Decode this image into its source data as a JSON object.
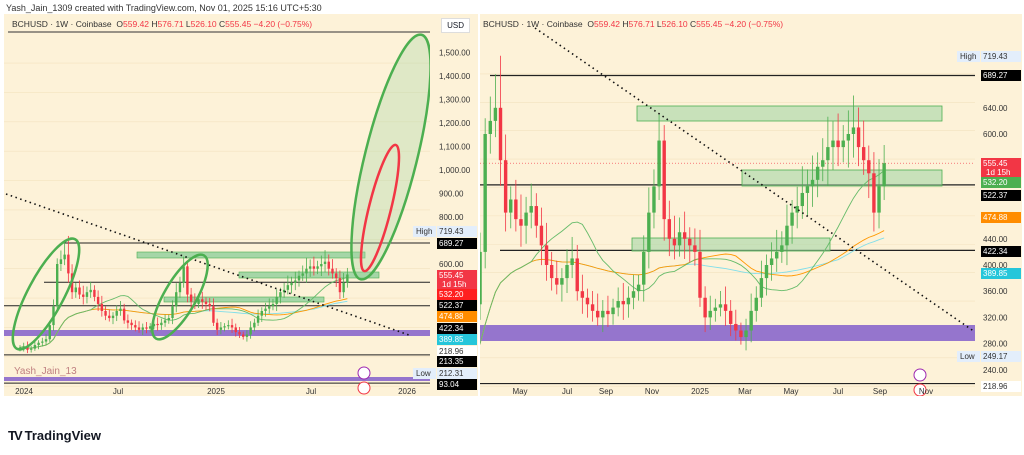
{
  "credit": "Yash_Jain_1309 created with TradingView.com, Nov 01, 2025 15:16 UTC+5:30",
  "brand": "TradingView",
  "watermark": "Yash_Jain_13",
  "header": {
    "symbol": "BCHUSD · 1W · Coinbase",
    "o_label": "O",
    "o": "559.42",
    "h_label": "H",
    "h": "576.71",
    "l_label": "L",
    "l": "526.10",
    "c_label": "C",
    "c": "555.45",
    "chg": "−4.20 (−0.75%)"
  },
  "currency": "USD",
  "colors": {
    "up": "#4caf50",
    "down": "#f23645",
    "bg": "#fdf2d8",
    "zone": "#a5d6a7",
    "band": "#9575cd",
    "ma_fast": "#66bb6a",
    "ma_slow": "#ff9800",
    "ma_long": "#80deea"
  },
  "chart_data": [
    {
      "type": "candlestick",
      "panel": "left",
      "interval": "1W",
      "symbol": "BCHUSD",
      "x_ticks": [
        "2024",
        "Jul",
        "2025",
        "Jul",
        "2026"
      ],
      "y_ticks": [
        "1,500.00",
        "1,400.00",
        "1,300.00",
        "1,200.00",
        "1,100.00",
        "1,000.00",
        "900.00",
        "800.00",
        "600.00"
      ],
      "y_tick_values": [
        1500,
        1400,
        1300,
        1200,
        1100,
        1000,
        900,
        800,
        600
      ],
      "ylim": [
        80,
        1580
      ],
      "labels": [
        {
          "text": "High",
          "value": "719.43",
          "kind": "high"
        },
        {
          "value": "689.27",
          "kind": "line"
        },
        {
          "value": "555.45",
          "sub": "1d 15h",
          "kind": "price"
        },
        {
          "value": "532.20",
          "kind": "ma"
        },
        {
          "value": "522.37",
          "kind": "line"
        },
        {
          "value": "474.88",
          "kind": "ma_slow"
        },
        {
          "value": "422.34",
          "kind": "line"
        },
        {
          "value": "389.85",
          "kind": "ma_long"
        },
        {
          "value": "218.96",
          "kind": "plain"
        },
        {
          "value": "213.35",
          "kind": "line"
        },
        {
          "text": "Low",
          "value": "212.31",
          "kind": "low"
        },
        {
          "value": "93.04",
          "kind": "line"
        }
      ]
    },
    {
      "type": "candlestick",
      "panel": "right",
      "interval": "1W",
      "symbol": "BCHUSD",
      "x_ticks": [
        "May",
        "Jul",
        "Sep",
        "Nov",
        "2025",
        "Mar",
        "May",
        "Jul",
        "Sep",
        "Nov"
      ],
      "y_ticks": [
        "640.00",
        "600.00",
        "440.00",
        "400.00",
        "360.00",
        "320.00",
        "280.00",
        "240.00"
      ],
      "y_tick_values": [
        640,
        600,
        440,
        400,
        360,
        320,
        280,
        240
      ],
      "ylim": [
        215,
        735
      ],
      "labels": [
        {
          "text": "High",
          "value": "719.43",
          "kind": "high"
        },
        {
          "value": "689.27",
          "kind": "line"
        },
        {
          "value": "555.45",
          "sub": "1d 15h",
          "kind": "price"
        },
        {
          "value": "532.20",
          "kind": "ma_green"
        },
        {
          "value": "522.37",
          "kind": "line"
        },
        {
          "value": "474.88",
          "kind": "ma_slow"
        },
        {
          "value": "422.34",
          "kind": "line"
        },
        {
          "value": "389.85",
          "kind": "ma_long"
        },
        {
          "text": "Low",
          "value": "249.17",
          "kind": "low"
        },
        {
          "value": "218.96",
          "kind": "plain"
        }
      ]
    }
  ],
  "weekly_closes": [
    {
      "month": "2024-01",
      "closes": [
        245,
        250,
        235,
        240
      ]
    },
    {
      "month": "2024-02",
      "closes": [
        255,
        265,
        270,
        280
      ]
    },
    {
      "month": "2024-03",
      "closes": [
        340,
        420,
        600,
        620
      ]
    },
    {
      "month": "2024-04",
      "closes": [
        640,
        560,
        480,
        500
      ]
    },
    {
      "month": "2024-05",
      "closes": [
        470,
        460,
        480,
        490
      ]
    },
    {
      "month": "2024-06",
      "closes": [
        460,
        430,
        400,
        380
      ]
    },
    {
      "month": "2024-07",
      "closes": [
        370,
        380,
        400,
        410
      ]
    },
    {
      "month": "2024-08",
      "closes": [
        360,
        350,
        340,
        330
      ]
    },
    {
      "month": "2024-09",
      "closes": [
        320,
        330,
        325,
        335
      ]
    },
    {
      "month": "2024-10",
      "closes": [
        345,
        340,
        350,
        360
      ]
    },
    {
      "month": "2024-11",
      "closes": [
        370,
        420,
        480,
        520
      ]
    },
    {
      "month": "2024-12",
      "closes": [
        590,
        470,
        440,
        430
      ]
    },
    {
      "month": "2025-01",
      "closes": [
        450,
        440,
        430,
        420
      ]
    },
    {
      "month": "2025-02",
      "closes": [
        350,
        320,
        330,
        335
      ]
    },
    {
      "month": "2025-03",
      "closes": [
        340,
        330,
        310,
        300
      ]
    },
    {
      "month": "2025-04",
      "closes": [
        290,
        300,
        330,
        350
      ]
    },
    {
      "month": "2025-05",
      "closes": [
        380,
        400,
        410,
        420
      ]
    },
    {
      "month": "2025-06",
      "closes": [
        430,
        460,
        480,
        490
      ]
    },
    {
      "month": "2025-07",
      "closes": [
        510,
        520,
        530,
        550
      ]
    },
    {
      "month": "2025-08",
      "closes": [
        560,
        580,
        590,
        580
      ]
    },
    {
      "month": "2025-09",
      "closes": [
        590,
        600,
        610,
        580
      ]
    },
    {
      "month": "2025-10",
      "closes": [
        560,
        540,
        480,
        520
      ]
    },
    {
      "month": "2025-11",
      "closes": [
        555.45
      ]
    }
  ]
}
